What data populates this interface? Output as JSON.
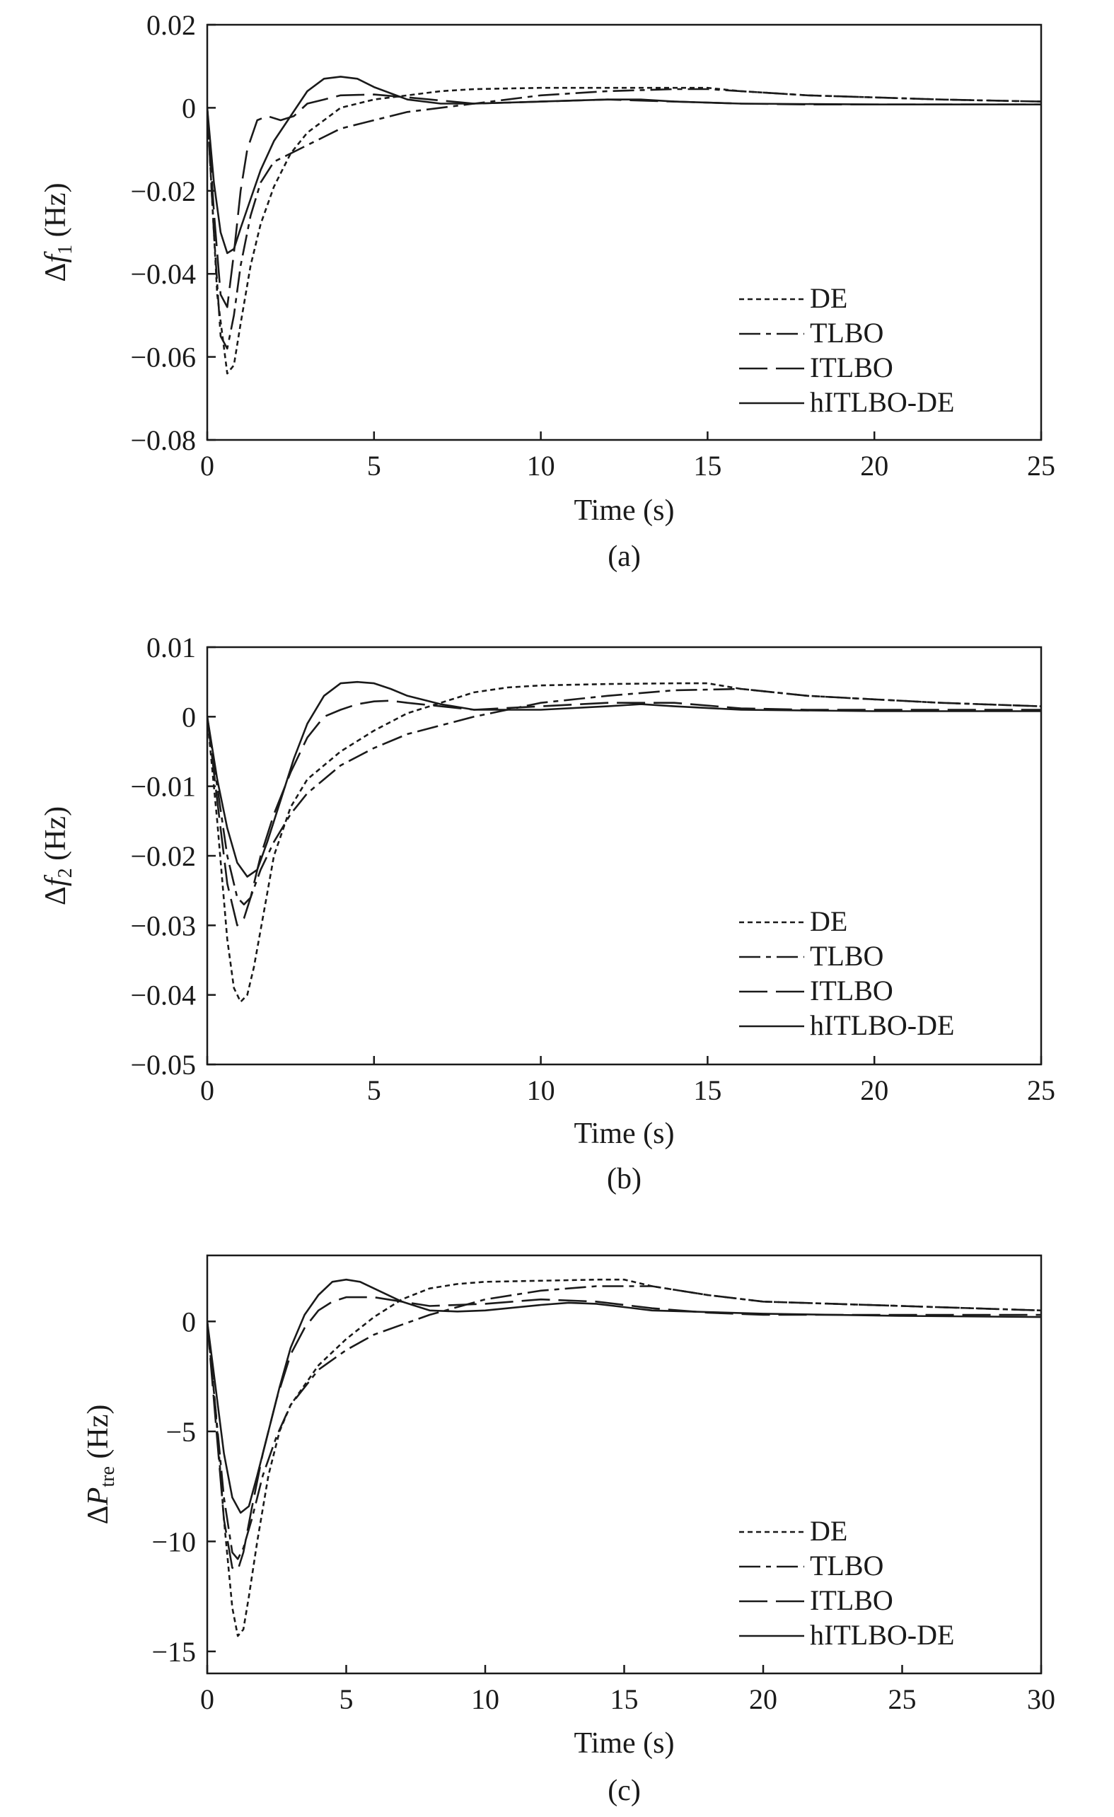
{
  "line_styles": {
    "DE": "dotted",
    "TLBO": "dash-dot",
    "ITLBO": "long-dash",
    "hITLBO-DE": "solid"
  },
  "stroke_color": "#1a1a1a",
  "chart_data": [
    {
      "type": "line",
      "caption": "(a)",
      "xlabel": "Time (s)",
      "ylabel": {
        "prefix": "Δ",
        "var": "f",
        "sub": "1",
        "suffix": " (Hz)"
      },
      "xlim": [
        0,
        25
      ],
      "ylim": [
        -0.08,
        0.02
      ],
      "xticks": [
        0,
        5,
        10,
        15,
        20,
        25
      ],
      "xtick_labels": [
        "0",
        "5",
        "10",
        "15",
        "20",
        "25"
      ],
      "yticks": [
        0.02,
        0,
        -0.02,
        -0.04,
        -0.06,
        -0.08
      ],
      "ytick_labels": [
        "0.02",
        "0",
        "−0.02",
        "−0.04",
        "−0.06",
        "−0.08"
      ],
      "grid": false,
      "legend_position": "bottom-right",
      "series": [
        {
          "name": "DE",
          "x": [
            0,
            0.3,
            0.6,
            0.8,
            1.0,
            1.3,
            1.6,
            2.0,
            2.5,
            3.0,
            3.5,
            4.0,
            5.0,
            6.0,
            7.0,
            8.0,
            10.0,
            12.0,
            14.0,
            15.0,
            16.0,
            18.0,
            20.0,
            22.0,
            25.0
          ],
          "y": [
            0,
            -0.045,
            -0.064,
            -0.062,
            -0.052,
            -0.038,
            -0.028,
            -0.019,
            -0.011,
            -0.006,
            -0.003,
            0.0,
            0.002,
            0.003,
            0.004,
            0.0045,
            0.0048,
            0.0048,
            0.0048,
            0.0048,
            0.004,
            0.003,
            0.0025,
            0.002,
            0.0015
          ]
        },
        {
          "name": "TLBO",
          "x": [
            0,
            0.2,
            0.4,
            0.6,
            0.8,
            1.0,
            1.3,
            1.6,
            2.0,
            2.5,
            3.0,
            3.5,
            4.0,
            5.0,
            6.0,
            8.0,
            10.0,
            12.0,
            14.0,
            15.0,
            16.0,
            18.0,
            20.0,
            22.0,
            25.0
          ],
          "y": [
            0,
            -0.03,
            -0.055,
            -0.058,
            -0.05,
            -0.038,
            -0.026,
            -0.018,
            -0.013,
            -0.011,
            -0.009,
            -0.007,
            -0.005,
            -0.003,
            -0.001,
            0.001,
            0.003,
            0.004,
            0.0045,
            0.0045,
            0.004,
            0.003,
            0.0025,
            0.002,
            0.0015
          ]
        },
        {
          "name": "ITLBO",
          "x": [
            0,
            0.2,
            0.4,
            0.6,
            0.8,
            1.0,
            1.2,
            1.5,
            1.8,
            2.2,
            2.6,
            3.0,
            3.5,
            4.0,
            5.0,
            6.0,
            8.0,
            10.0,
            12.0,
            14.0,
            16.0,
            18.0,
            20.0,
            22.0,
            25.0
          ],
          "y": [
            0,
            -0.025,
            -0.045,
            -0.048,
            -0.035,
            -0.02,
            -0.01,
            -0.003,
            -0.002,
            -0.003,
            -0.002,
            0.001,
            0.002,
            0.003,
            0.0032,
            0.0025,
            0.001,
            0.0015,
            0.002,
            0.0015,
            0.001,
            0.0008,
            0.0008,
            0.0008,
            0.0008
          ]
        },
        {
          "name": "hITLBO-DE",
          "x": [
            0,
            0.2,
            0.4,
            0.6,
            0.8,
            1.0,
            1.3,
            1.6,
            2.0,
            2.5,
            3.0,
            3.5,
            4.0,
            4.5,
            5.0,
            6.0,
            7.0,
            8.0,
            10.0,
            12.0,
            13.0,
            14.0,
            16.0,
            20.0,
            25.0
          ],
          "y": [
            0,
            -0.018,
            -0.03,
            -0.035,
            -0.034,
            -0.029,
            -0.022,
            -0.015,
            -0.008,
            -0.002,
            0.004,
            0.007,
            0.0075,
            0.007,
            0.005,
            0.002,
            0.001,
            0.001,
            0.0015,
            0.002,
            0.002,
            0.0015,
            0.001,
            0.0008,
            0.0008
          ]
        }
      ]
    },
    {
      "type": "line",
      "caption": "(b)",
      "xlabel": "Time (s)",
      "ylabel": {
        "prefix": "Δ",
        "var": "f",
        "sub": "2",
        "suffix": " (Hz)"
      },
      "xlim": [
        0,
        25
      ],
      "ylim": [
        -0.05,
        0.01
      ],
      "xticks": [
        0,
        5,
        10,
        15,
        20,
        25
      ],
      "xtick_labels": [
        "0",
        "5",
        "10",
        "15",
        "20",
        "25"
      ],
      "yticks": [
        0.01,
        0,
        -0.01,
        -0.02,
        -0.03,
        -0.04,
        -0.05
      ],
      "ytick_labels": [
        "0.01",
        "0",
        "−0.01",
        "−0.02",
        "−0.03",
        "−0.04",
        "−0.05"
      ],
      "grid": false,
      "legend_position": "bottom-right",
      "series": [
        {
          "name": "DE",
          "x": [
            0,
            0.3,
            0.6,
            0.8,
            1.0,
            1.2,
            1.4,
            1.7,
            2.0,
            2.5,
            3.0,
            4.0,
            5.0,
            6.0,
            7.0,
            8.0,
            9.0,
            10.0,
            12.0,
            14.0,
            15.0,
            16.0,
            18.0,
            20.0,
            22.0,
            25.0
          ],
          "y": [
            0,
            -0.015,
            -0.032,
            -0.039,
            -0.041,
            -0.04,
            -0.036,
            -0.028,
            -0.02,
            -0.013,
            -0.009,
            -0.005,
            -0.002,
            0.0005,
            0.002,
            0.0035,
            0.0042,
            0.0045,
            0.0047,
            0.0048,
            0.0048,
            0.004,
            0.003,
            0.0025,
            0.002,
            0.0015
          ]
        },
        {
          "name": "TLBO",
          "x": [
            0,
            0.3,
            0.6,
            0.9,
            1.1,
            1.3,
            1.6,
            2.0,
            2.5,
            3.0,
            4.0,
            5.0,
            6.0,
            8.0,
            10.0,
            12.0,
            14.0,
            16.0,
            18.0,
            20.0,
            22.0,
            25.0
          ],
          "y": [
            0,
            -0.01,
            -0.02,
            -0.026,
            -0.027,
            -0.026,
            -0.022,
            -0.018,
            -0.014,
            -0.011,
            -0.007,
            -0.0045,
            -0.0025,
            0.0,
            0.002,
            0.003,
            0.0038,
            0.004,
            0.003,
            0.0025,
            0.002,
            0.0015
          ]
        },
        {
          "name": "ITLBO",
          "x": [
            0,
            0.3,
            0.6,
            0.9,
            1.1,
            1.3,
            1.6,
            2.0,
            2.5,
            3.0,
            3.5,
            4.0,
            4.5,
            5.0,
            5.5,
            6.0,
            7.0,
            8.0,
            10.0,
            12.0,
            14.0,
            16.0,
            18.0,
            20.0,
            25.0
          ],
          "y": [
            0,
            -0.012,
            -0.024,
            -0.03,
            -0.029,
            -0.026,
            -0.02,
            -0.014,
            -0.008,
            -0.003,
            0.0,
            0.001,
            0.0018,
            0.0022,
            0.0023,
            0.002,
            0.0015,
            0.001,
            0.0015,
            0.002,
            0.002,
            0.0012,
            0.001,
            0.001,
            0.001
          ]
        },
        {
          "name": "hITLBO-DE",
          "x": [
            0,
            0.3,
            0.6,
            0.9,
            1.2,
            1.5,
            1.8,
            2.2,
            2.6,
            3.0,
            3.5,
            4.0,
            4.5,
            5.0,
            5.5,
            6.0,
            7.0,
            8.0,
            9.0,
            10.0,
            12.0,
            13.0,
            14.0,
            16.0,
            20.0,
            25.0
          ],
          "y": [
            0,
            -0.009,
            -0.016,
            -0.021,
            -0.023,
            -0.022,
            -0.018,
            -0.012,
            -0.006,
            -0.001,
            0.003,
            0.0048,
            0.005,
            0.0048,
            0.004,
            0.003,
            0.0018,
            0.001,
            0.001,
            0.001,
            0.0015,
            0.0018,
            0.0015,
            0.001,
            0.0008,
            0.0008
          ]
        }
      ]
    },
    {
      "type": "line",
      "caption": "(c)",
      "xlabel": "Time (s)",
      "ylabel": {
        "prefix": "Δ",
        "var": "P",
        "sub": "tre",
        "suffix": " (Hz)"
      },
      "xlim": [
        0,
        30
      ],
      "ylim": [
        -16,
        3
      ],
      "xticks": [
        0,
        5,
        10,
        15,
        20,
        25,
        30
      ],
      "xtick_labels": [
        "0",
        "5",
        "10",
        "15",
        "20",
        "25",
        "30"
      ],
      "yticks": [
        0,
        -5,
        -10,
        -15
      ],
      "ytick_labels": [
        "0",
        "−5",
        "−10",
        "−15"
      ],
      "grid": false,
      "legend_position": "bottom-right",
      "series": [
        {
          "name": "DE",
          "x": [
            0,
            0.3,
            0.6,
            0.9,
            1.1,
            1.3,
            1.5,
            1.8,
            2.2,
            2.6,
            3.0,
            4.0,
            5.0,
            6.0,
            7.0,
            8.0,
            9.0,
            10.0,
            12.0,
            14.0,
            15.0,
            16.0,
            18.0,
            20.0,
            25.0,
            30.0
          ],
          "y": [
            0,
            -4,
            -9,
            -13,
            -14.3,
            -14,
            -12.5,
            -10,
            -7,
            -5,
            -3.8,
            -2,
            -0.8,
            0.2,
            1.0,
            1.5,
            1.7,
            1.8,
            1.85,
            1.9,
            1.9,
            1.6,
            1.2,
            0.9,
            0.7,
            0.5
          ]
        },
        {
          "name": "TLBO",
          "x": [
            0,
            0.3,
            0.6,
            0.9,
            1.1,
            1.3,
            1.6,
            2.0,
            2.5,
            3.0,
            4.0,
            5.0,
            6.0,
            8.0,
            10.0,
            12.0,
            14.0,
            16.0,
            18.0,
            20.0,
            25.0,
            30.0
          ],
          "y": [
            0,
            -4,
            -8,
            -10.5,
            -10.8,
            -10.3,
            -9,
            -7,
            -5.2,
            -3.8,
            -2.2,
            -1.3,
            -0.6,
            0.3,
            1.0,
            1.4,
            1.6,
            1.6,
            1.2,
            0.9,
            0.7,
            0.5
          ]
        },
        {
          "name": "ITLBO",
          "x": [
            0,
            0.3,
            0.6,
            0.9,
            1.1,
            1.3,
            1.6,
            2.0,
            2.5,
            3.0,
            3.5,
            4.0,
            4.5,
            5.0,
            6.0,
            7.0,
            8.0,
            10.0,
            12.0,
            14.0,
            16.0,
            18.0,
            20.0,
            25.0,
            30.0
          ],
          "y": [
            0,
            -4.5,
            -9,
            -11.2,
            -11.3,
            -10.5,
            -8.5,
            -6,
            -3.5,
            -1.5,
            -0.3,
            0.5,
            0.9,
            1.1,
            1.1,
            0.9,
            0.7,
            0.8,
            1.0,
            0.9,
            0.6,
            0.4,
            0.3,
            0.3,
            0.3
          ]
        },
        {
          "name": "hITLBO-DE",
          "x": [
            0,
            0.3,
            0.6,
            0.9,
            1.2,
            1.5,
            1.8,
            2.2,
            2.6,
            3.0,
            3.5,
            4.0,
            4.5,
            5.0,
            5.5,
            6.0,
            7.0,
            8.0,
            9.0,
            10.0,
            12.0,
            13.0,
            14.0,
            16.0,
            20.0,
            25.0,
            30.0
          ],
          "y": [
            0,
            -3,
            -6,
            -8,
            -8.7,
            -8.4,
            -7,
            -5,
            -3,
            -1.2,
            0.3,
            1.2,
            1.8,
            1.9,
            1.8,
            1.5,
            0.9,
            0.5,
            0.45,
            0.5,
            0.75,
            0.85,
            0.8,
            0.5,
            0.35,
            0.25,
            0.2
          ]
        }
      ]
    }
  ]
}
